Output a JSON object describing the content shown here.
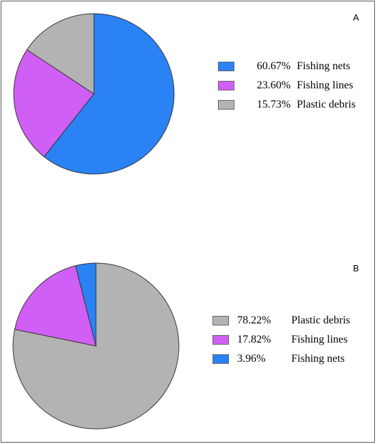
{
  "chart_data": [
    {
      "type": "pie",
      "panel_label": "A",
      "title": "",
      "legend_position": "right",
      "slices": [
        {
          "label": "Fishing nets",
          "percent_text": "60.67%",
          "value": 60.67,
          "color": "#2a82f5"
        },
        {
          "label": "Fishing lines",
          "percent_text": "23.60%",
          "value": 23.6,
          "color": "#cf5ff5"
        },
        {
          "label": "Plastic debris",
          "percent_text": "15.73%",
          "value": 15.73,
          "color": "#b3b3b3"
        }
      ]
    },
    {
      "type": "pie",
      "panel_label": "B",
      "title": "",
      "legend_position": "right",
      "slices": [
        {
          "label": "Plastic debris",
          "percent_text": "78.22%",
          "value": 78.22,
          "color": "#b3b3b3"
        },
        {
          "label": "Fishing lines",
          "percent_text": "17.82%",
          "value": 17.82,
          "color": "#cf5ff5"
        },
        {
          "label": "Fishing nets",
          "percent_text": "3.96%",
          "value": 3.96,
          "color": "#2a82f5"
        }
      ]
    }
  ]
}
